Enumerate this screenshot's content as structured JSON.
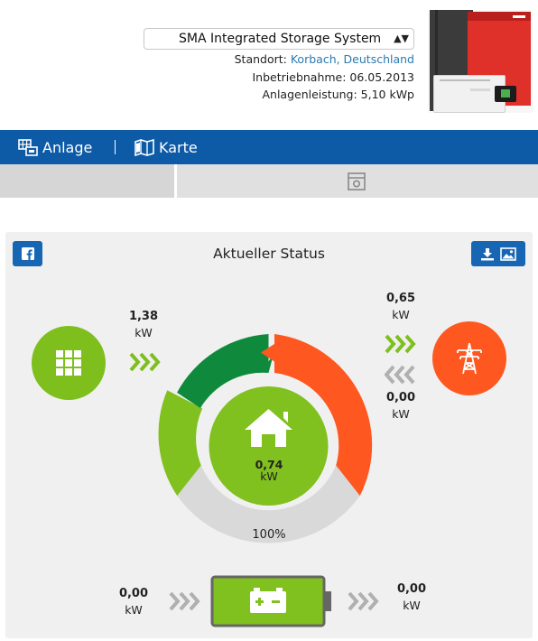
{
  "header": {
    "system_name": "SMA Integrated Storage System",
    "location_label": "Standort:",
    "location_value": "Korbach, Deutschland",
    "commissioning": "Inbetriebnahme: 06.05.2013",
    "power": "Anlagenleistung: 5,10 kWp",
    "select_arrows": "▲▼"
  },
  "nav": {
    "anlage": "Anlage",
    "karte": "Karte"
  },
  "status": {
    "title": "Aktueller Status",
    "pv_power": "1,38",
    "pv_unit": "kW",
    "grid_feed_in": "0,65",
    "grid_feed_in_unit": "kW",
    "grid_purchase": "0,00",
    "grid_purchase_unit": "kW",
    "consumption": "0,74",
    "consumption_unit": "kW",
    "autarky": "100%",
    "battery_charge": "0,00",
    "battery_charge_unit": "kW",
    "battery_discharge": "0,00",
    "battery_discharge_unit": "kW"
  },
  "icons": {
    "facebook": "facebook-icon",
    "download": "download-icon",
    "image": "image-icon",
    "pv": "solar-panel-icon",
    "grid": "power-pylon-icon",
    "home": "house-icon",
    "battery": "battery-icon"
  },
  "colors": {
    "nav": "#0d5aa7",
    "button": "#1666b4",
    "pv_green": "#7ebf1e",
    "dark_green": "#0f8a3c",
    "orange": "#ff5720",
    "grey_arc": "#d9d9d9",
    "arrow_inactive": "#b0b0b0"
  }
}
